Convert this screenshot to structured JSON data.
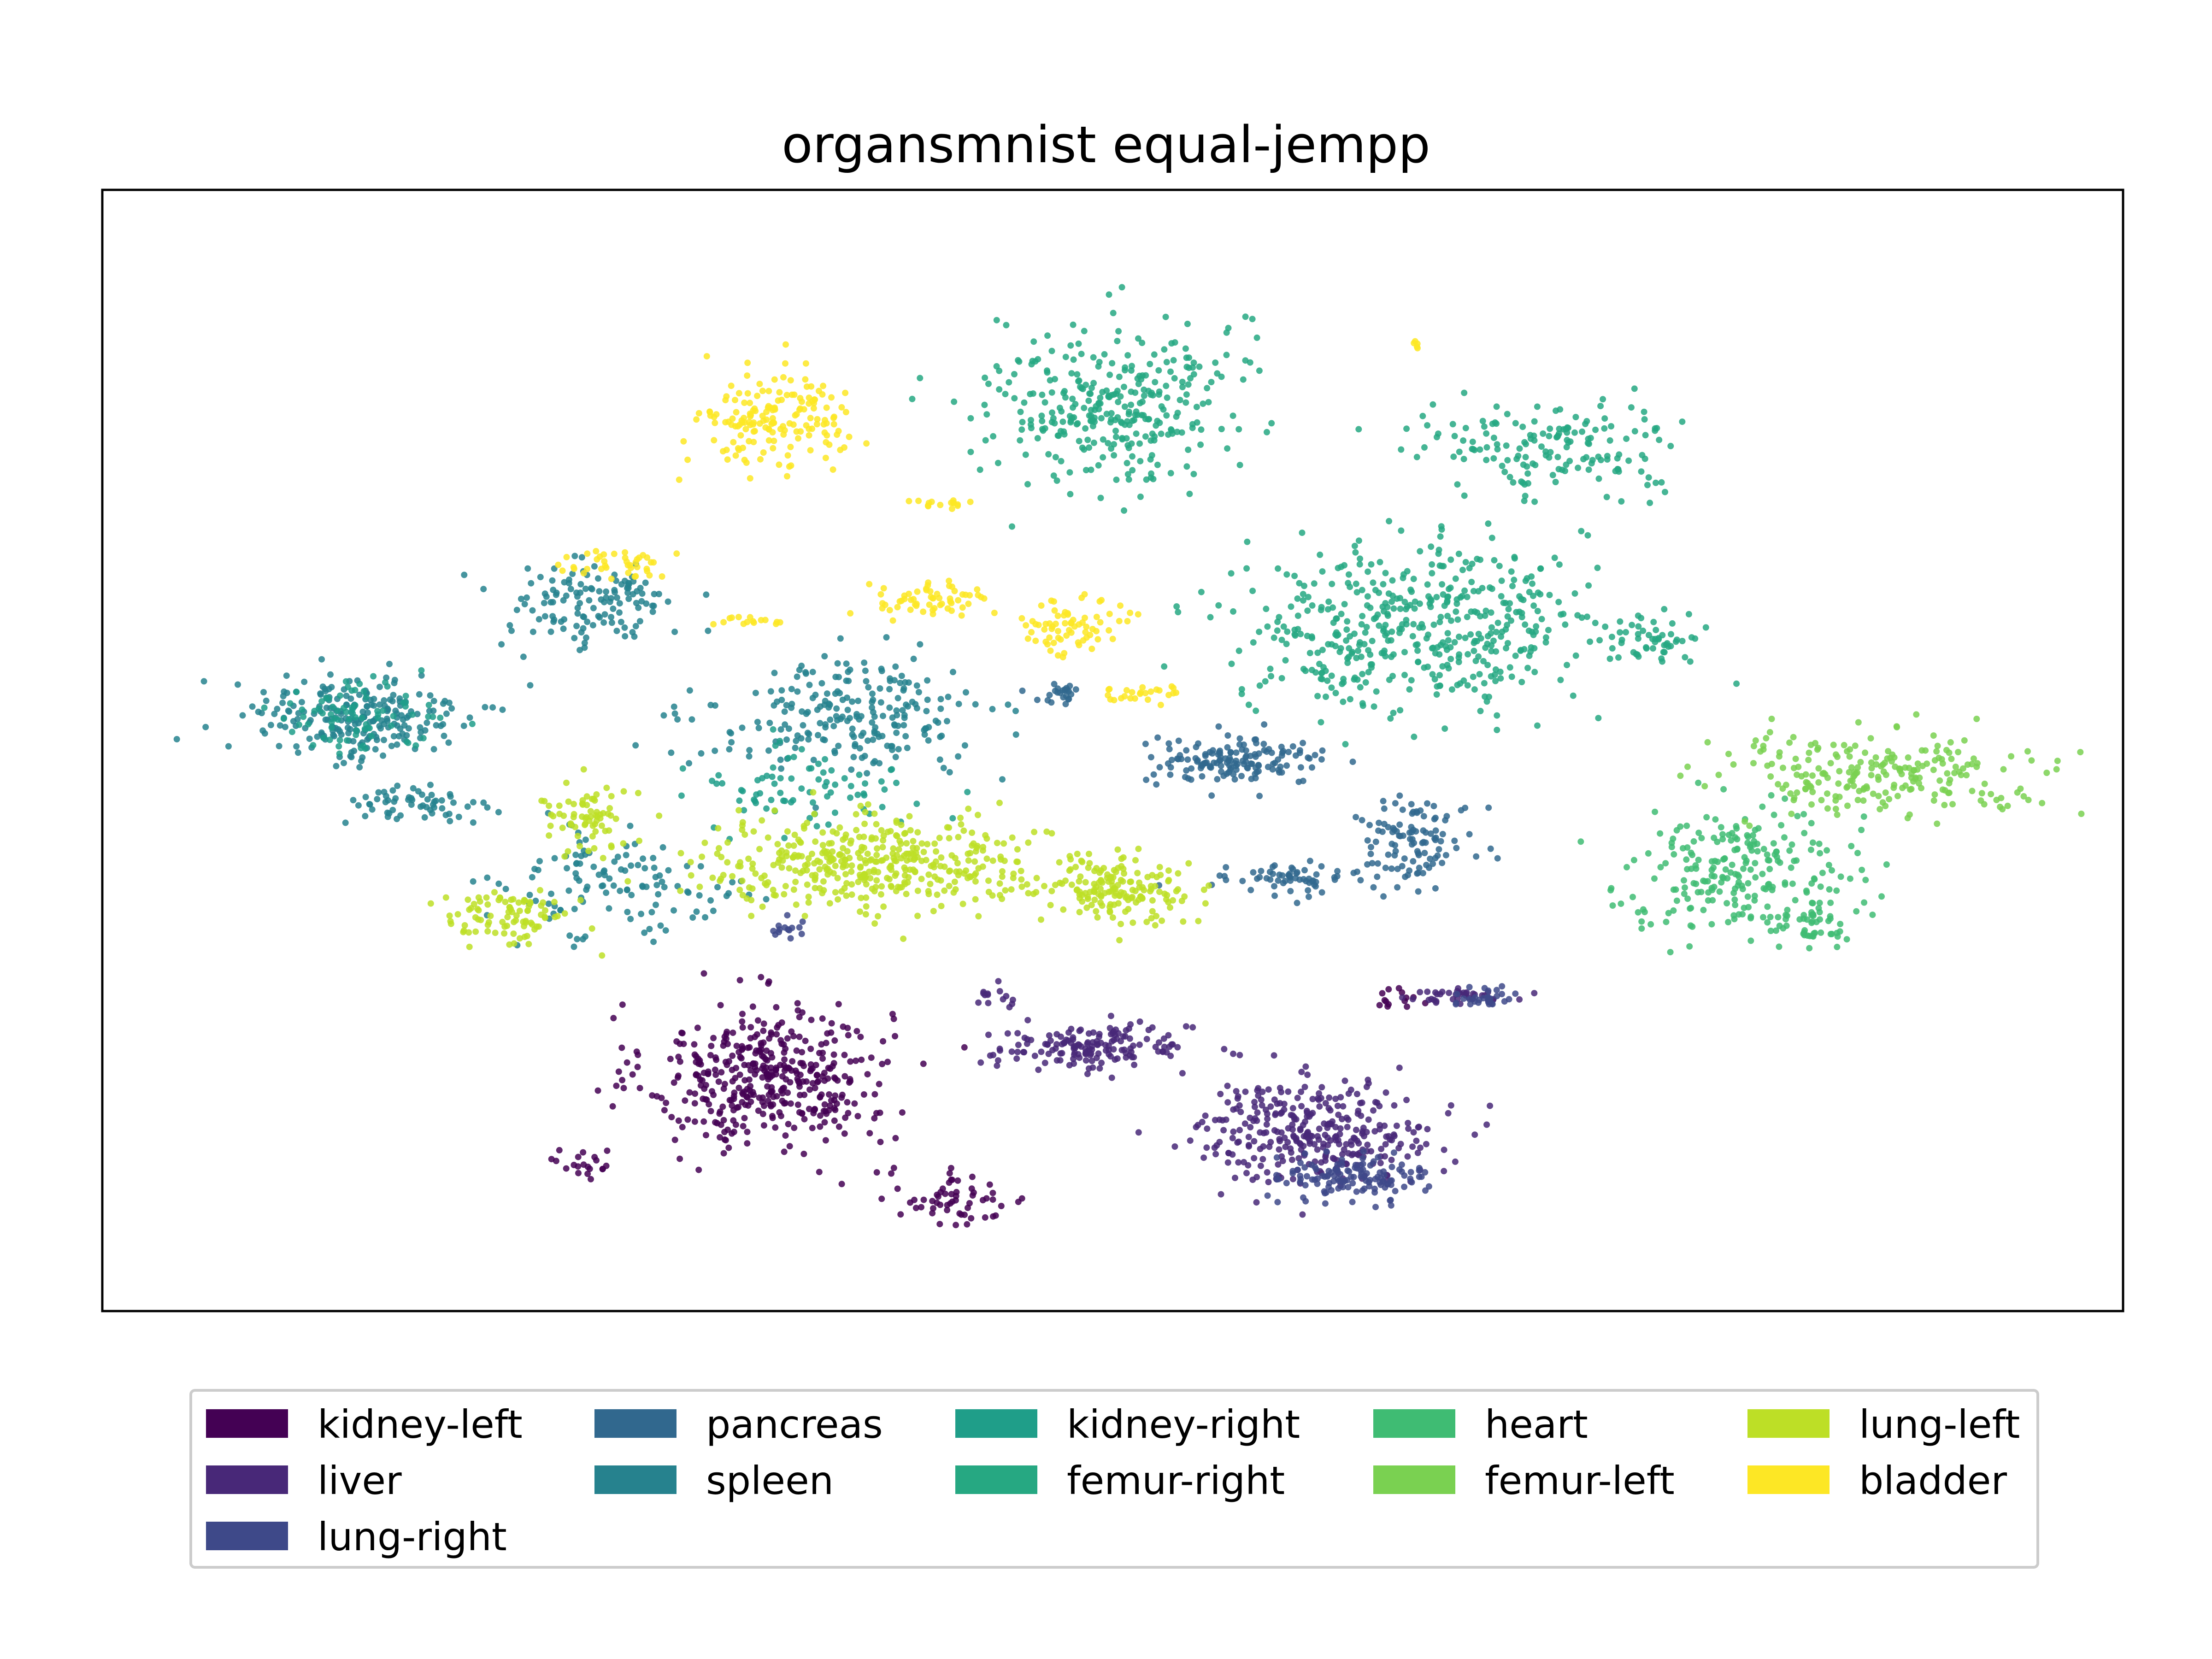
{
  "title": "organsmnist equal-jempp",
  "chart_data": {
    "type": "scatter",
    "title": "organsmnist equal-jempp",
    "xlabel": "",
    "ylabel": "",
    "xlim": [
      0,
      100
    ],
    "ylim": [
      0,
      100
    ],
    "ticks_visible": false,
    "grid": false,
    "legend_position": "bottom-center",
    "legend_columns": 5,
    "series": [
      {
        "name": "kidney-left",
        "color": "#440154",
        "clusters": [
          {
            "cx": 33,
            "cy": 21,
            "rx": 6.0,
            "ry": 6.5,
            "n": 420
          },
          {
            "cx": 42,
            "cy": 10,
            "rx": 4.0,
            "ry": 2.5,
            "n": 60
          },
          {
            "cx": 24,
            "cy": 13,
            "rx": 1.5,
            "ry": 1.5,
            "n": 20
          },
          {
            "cx": 64,
            "cy": 28,
            "rx": 1.0,
            "ry": 1.2,
            "n": 14
          }
        ]
      },
      {
        "name": "liver",
        "color": "#482878",
        "clusters": [
          {
            "cx": 60,
            "cy": 16,
            "rx": 6.0,
            "ry": 4.5,
            "n": 330
          },
          {
            "cx": 49,
            "cy": 23.5,
            "rx": 5.0,
            "ry": 2.0,
            "n": 160
          },
          {
            "cx": 44,
            "cy": 28,
            "rx": 1.0,
            "ry": 1.2,
            "n": 14
          },
          {
            "cx": 67,
            "cy": 28,
            "rx": 3.0,
            "ry": 0.8,
            "n": 40
          }
        ]
      },
      {
        "name": "lung-right",
        "color": "#3e4989",
        "clusters": [
          {
            "cx": 62,
            "cy": 12,
            "rx": 3.5,
            "ry": 2.0,
            "n": 130
          },
          {
            "cx": 68.5,
            "cy": 28,
            "rx": 1.5,
            "ry": 0.8,
            "n": 30
          },
          {
            "cx": 34,
            "cy": 34,
            "rx": 1.0,
            "ry": 1.0,
            "n": 14
          }
        ]
      },
      {
        "name": "pancreas",
        "color": "#31688e",
        "clusters": [
          {
            "cx": 56,
            "cy": 49,
            "rx": 4.5,
            "ry": 2.0,
            "n": 150
          },
          {
            "cx": 65,
            "cy": 42,
            "rx": 3.0,
            "ry": 4.0,
            "n": 110
          },
          {
            "cx": 58.5,
            "cy": 38.5,
            "rx": 3.0,
            "ry": 1.2,
            "n": 60
          },
          {
            "cx": 47.5,
            "cy": 55,
            "rx": 1.5,
            "ry": 1.0,
            "n": 24
          }
        ]
      },
      {
        "name": "spleen",
        "color": "#26828e",
        "clusters": [
          {
            "cx": 12.5,
            "cy": 53,
            "rx": 5.5,
            "ry": 4.0,
            "n": 230
          },
          {
            "cx": 15.5,
            "cy": 45,
            "rx": 3.5,
            "ry": 1.8,
            "n": 60
          },
          {
            "cx": 24,
            "cy": 63,
            "rx": 4.5,
            "ry": 4.0,
            "n": 130
          },
          {
            "cx": 37,
            "cy": 53,
            "rx": 7.0,
            "ry": 5.0,
            "n": 230
          },
          {
            "cx": 26,
            "cy": 38,
            "rx": 6.0,
            "ry": 5.0,
            "n": 120
          }
        ]
      },
      {
        "name": "kidney-right",
        "color": "#1f9e89",
        "clusters": [
          {
            "cx": 12,
            "cy": 53,
            "rx": 4.0,
            "ry": 3.0,
            "n": 80
          },
          {
            "cx": 35,
            "cy": 47,
            "rx": 6.0,
            "ry": 4.0,
            "n": 80
          }
        ]
      },
      {
        "name": "femur-right",
        "color": "#26a882",
        "clusters": [
          {
            "cx": 50,
            "cy": 81,
            "rx": 6.0,
            "ry": 7.5,
            "n": 330
          },
          {
            "cx": 65,
            "cy": 61,
            "rx": 8.5,
            "ry": 7.5,
            "n": 480
          },
          {
            "cx": 72,
            "cy": 77,
            "rx": 7.0,
            "ry": 4.0,
            "n": 160
          },
          {
            "cx": 77,
            "cy": 60,
            "rx": 2.5,
            "ry": 2.0,
            "n": 50
          }
        ]
      },
      {
        "name": "heart",
        "color": "#3fbc73",
        "clusters": [
          {
            "cx": 81,
            "cy": 39.5,
            "rx": 5.5,
            "ry": 5.5,
            "n": 240
          },
          {
            "cx": 85,
            "cy": 34,
            "rx": 1.5,
            "ry": 2.5,
            "n": 40
          }
        ]
      },
      {
        "name": "femur-left",
        "color": "#7ad151",
        "clusters": [
          {
            "cx": 88,
            "cy": 48,
            "rx": 8.5,
            "ry": 3.5,
            "n": 230
          }
        ]
      },
      {
        "name": "lung-left",
        "color": "#bddf26",
        "clusters": [
          {
            "cx": 38,
            "cy": 40,
            "rx": 8.5,
            "ry": 4.0,
            "n": 420
          },
          {
            "cx": 50.5,
            "cy": 37.5,
            "rx": 3.5,
            "ry": 3.0,
            "n": 160
          },
          {
            "cx": 20,
            "cy": 35,
            "rx": 3.0,
            "ry": 2.5,
            "n": 90
          },
          {
            "cx": 24,
            "cy": 44,
            "rx": 2.5,
            "ry": 3.0,
            "n": 70
          }
        ]
      },
      {
        "name": "bladder",
        "color": "#fde725",
        "clusters": [
          {
            "cx": 33.5,
            "cy": 79.5,
            "rx": 3.8,
            "ry": 4.5,
            "n": 170
          },
          {
            "cx": 48,
            "cy": 61,
            "rx": 2.5,
            "ry": 2.5,
            "n": 70
          },
          {
            "cx": 41,
            "cy": 63.5,
            "rx": 3.0,
            "ry": 1.5,
            "n": 60
          },
          {
            "cx": 25.5,
            "cy": 66.5,
            "rx": 3.0,
            "ry": 1.5,
            "n": 40
          },
          {
            "cx": 51.5,
            "cy": 55,
            "rx": 2.0,
            "ry": 0.8,
            "n": 25
          },
          {
            "cx": 41,
            "cy": 72,
            "rx": 2.0,
            "ry": 0.5,
            "n": 15
          },
          {
            "cx": 32,
            "cy": 61.5,
            "rx": 1.8,
            "ry": 0.5,
            "n": 15
          },
          {
            "cx": 65,
            "cy": 86,
            "rx": 0.5,
            "ry": 0.5,
            "n": 5
          }
        ]
      }
    ]
  },
  "legend": {
    "items": [
      {
        "label": "kidney-left",
        "color": "#440154"
      },
      {
        "label": "liver",
        "color": "#482878"
      },
      {
        "label": "lung-right",
        "color": "#3e4989"
      },
      {
        "label": "pancreas",
        "color": "#31688e"
      },
      {
        "label": "spleen",
        "color": "#26828e"
      },
      {
        "label": "kidney-right",
        "color": "#1f9e89"
      },
      {
        "label": "femur-right",
        "color": "#26a882"
      },
      {
        "label": "heart",
        "color": "#3fbc73"
      },
      {
        "label": "femur-left",
        "color": "#7ad151"
      },
      {
        "label": "lung-left",
        "color": "#bddf26"
      },
      {
        "label": "bladder",
        "color": "#fde725"
      }
    ]
  }
}
